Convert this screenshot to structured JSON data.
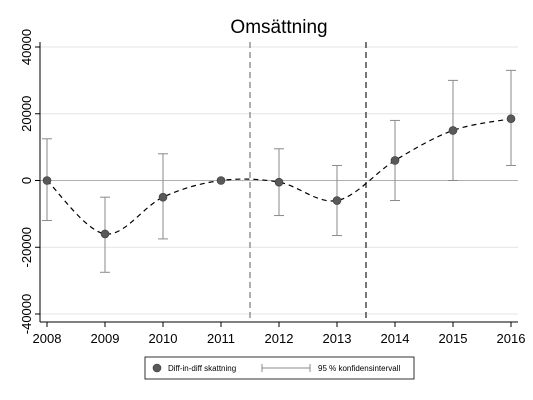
{
  "chart_data": {
    "type": "line",
    "title": "Omsättning",
    "xlabel": "",
    "ylabel": "",
    "x": [
      2008,
      2009,
      2010,
      2011,
      2012,
      2013,
      2014,
      2015,
      2016
    ],
    "xlim": [
      2008,
      2016
    ],
    "ylim": [
      -40000,
      40000
    ],
    "yticks": [
      -40000,
      -20000,
      0,
      20000,
      40000
    ],
    "ytick_labels": [
      "-40000",
      "-20000",
      "0",
      "20000",
      "40000"
    ],
    "xtick_labels": [
      "2008",
      "2009",
      "2010",
      "2011",
      "2012",
      "2013",
      "2014",
      "2015",
      "2016"
    ],
    "grid": "horizontal",
    "series": [
      {
        "name": "Diff-in-diff skattning",
        "values": [
          0,
          -16000,
          -5000,
          0,
          -500,
          -6000,
          6000,
          15000,
          18500
        ],
        "color": "#595959",
        "line_style": "dashed"
      },
      {
        "name": "95 % konfidensintervall",
        "lower": [
          -12000,
          -27500,
          -17500,
          0,
          -10500,
          -16500,
          -6000,
          0,
          4500
        ],
        "upper": [
          12500,
          -5000,
          8000,
          0,
          9500,
          4500,
          18000,
          30000,
          33000
        ],
        "color": "#8a8a8a"
      }
    ],
    "reference_lines": [
      {
        "x": 2011.5,
        "style": "dashed",
        "color": "#9a9a9a"
      },
      {
        "x": 2013.5,
        "style": "dashed",
        "color": "#555555"
      }
    ],
    "zero_line": {
      "y": 0,
      "color": "#b0b0b0"
    },
    "legend_position": "bottom"
  }
}
